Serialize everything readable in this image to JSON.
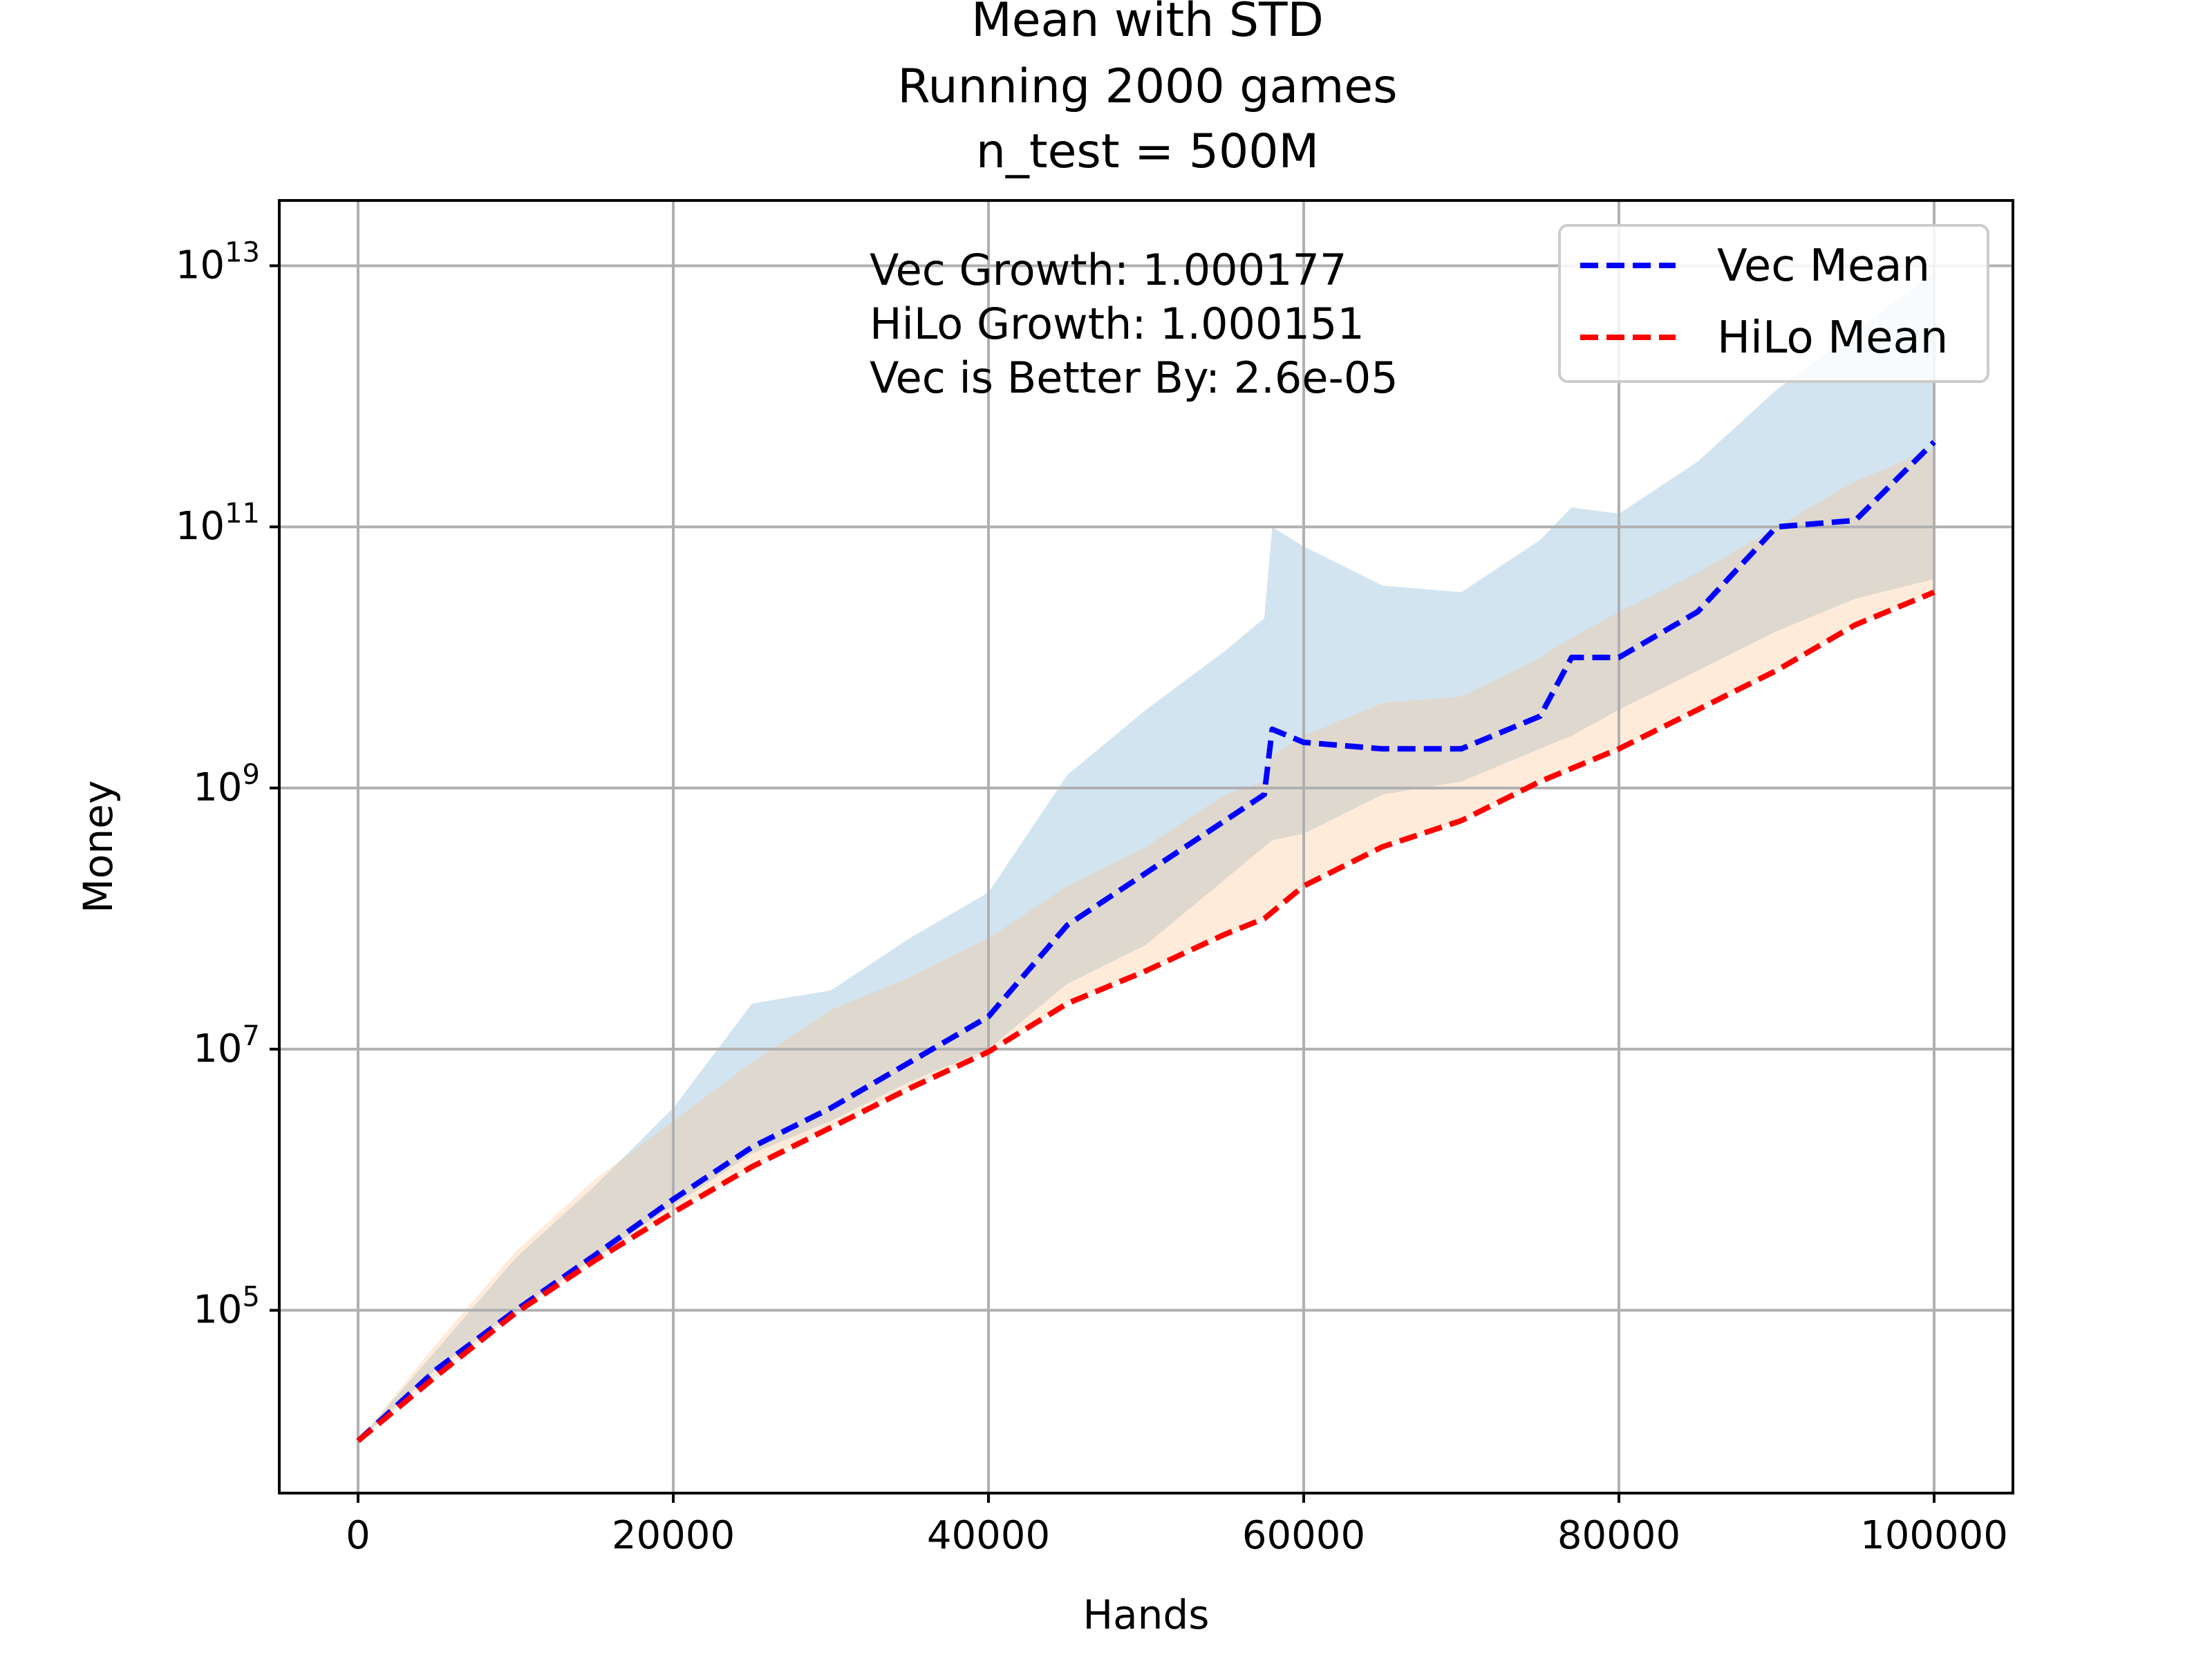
{
  "chart_data": {
    "type": "line",
    "title_lines": [
      "Mean with STD",
      "Running 2000 games",
      "n_test = 500M"
    ],
    "xlabel": "Hands",
    "ylabel": "Money",
    "yscale": "log",
    "xlim": [
      -5000,
      105000
    ],
    "ylim_log10": [
      3.6,
      13.5
    ],
    "x_ticks": [
      0,
      20000,
      40000,
      60000,
      80000,
      100000
    ],
    "x_tick_labels": [
      "0",
      "20000",
      "40000",
      "60000",
      "80000",
      "100000"
    ],
    "y_ticks_log10": [
      5,
      7,
      9,
      11,
      13
    ],
    "y_tick_labels": [
      {
        "base": "10",
        "exp": "5"
      },
      {
        "base": "10",
        "exp": "7"
      },
      {
        "base": "10",
        "exp": "9"
      },
      {
        "base": "10",
        "exp": "11"
      },
      {
        "base": "10",
        "exp": "13"
      }
    ],
    "grid": true,
    "legend_position": "top-right",
    "annotation_lines": [
      "Vec Growth: 1.000177",
      "HiLo Growth: 1.000151",
      "Vec is Better By: 2.6e-05"
    ],
    "x": [
      0,
      5000,
      10000,
      15000,
      20000,
      25000,
      30000,
      35000,
      40000,
      45000,
      50000,
      55000,
      57500,
      58000,
      60000,
      65000,
      70000,
      75000,
      77000,
      80000,
      85000,
      90000,
      95000,
      100000
    ],
    "series": [
      {
        "name": "Vec Mean",
        "color": "#0000ff",
        "dash": "dashed",
        "log10_mean": [
          4.0,
          4.55,
          5.0,
          5.42,
          5.85,
          6.25,
          6.55,
          6.9,
          7.25,
          7.95,
          8.35,
          8.75,
          8.95,
          9.45,
          9.35,
          9.3,
          9.3,
          9.55,
          10.0,
          10.0,
          10.35,
          11.0,
          11.05,
          11.65
        ],
        "band_color": "#1f77b4",
        "log10_band_low": [
          4.0,
          4.55,
          5.0,
          5.4,
          5.8,
          6.2,
          6.45,
          6.75,
          7.0,
          7.5,
          7.8,
          8.3,
          8.55,
          8.6,
          8.65,
          8.95,
          9.05,
          9.3,
          9.4,
          9.6,
          9.9,
          10.2,
          10.45,
          10.6
        ],
        "log10_band_high": [
          4.0,
          4.7,
          5.4,
          5.95,
          6.55,
          7.35,
          7.45,
          7.85,
          8.2,
          9.1,
          9.6,
          10.05,
          10.3,
          11.0,
          10.85,
          10.55,
          10.5,
          10.9,
          11.15,
          11.1,
          11.5,
          12.05,
          12.5,
          12.95
        ]
      },
      {
        "name": "HiLo Mean",
        "color": "#ff0000",
        "dash": "dashed",
        "log10_mean": [
          4.0,
          4.5,
          4.98,
          5.38,
          5.75,
          6.1,
          6.4,
          6.7,
          6.98,
          7.35,
          7.6,
          7.88,
          8.0,
          8.05,
          8.25,
          8.55,
          8.75,
          9.05,
          9.15,
          9.3,
          9.6,
          9.9,
          10.25,
          10.5
        ],
        "band_color": "#ffbe86",
        "log10_band_low": [
          4.0,
          4.5,
          4.98,
          5.38,
          5.75,
          6.1,
          6.4,
          6.7,
          6.98,
          7.35,
          7.6,
          7.88,
          8.0,
          8.05,
          8.25,
          8.55,
          8.75,
          9.05,
          9.15,
          9.3,
          9.6,
          9.9,
          10.25,
          10.5
        ],
        "log10_band_high": [
          4.0,
          4.75,
          5.45,
          6.0,
          6.45,
          6.9,
          7.3,
          7.55,
          7.85,
          8.25,
          8.55,
          8.95,
          9.05,
          9.25,
          9.4,
          9.65,
          9.7,
          10.0,
          10.15,
          10.35,
          10.65,
          11.0,
          11.35,
          11.6
        ]
      }
    ]
  }
}
